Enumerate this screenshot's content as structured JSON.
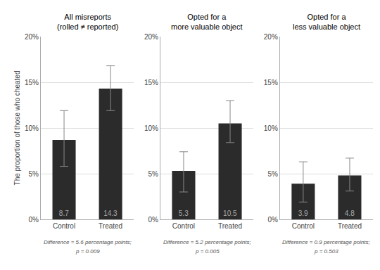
{
  "chart_data": [
    {
      "type": "bar",
      "title": "All misreports\n(rolled ≠ reported)",
      "ylabel": "The proportion of those who cheated",
      "categories": [
        "Control",
        "Treated"
      ],
      "values": [
        8.7,
        14.3
      ],
      "ci_lower": [
        5.8,
        11.9
      ],
      "ci_upper": [
        11.9,
        16.8
      ],
      "color": "#2b2b2b",
      "ylim": [
        0,
        20
      ],
      "yticks": [
        {
          "value": 0,
          "label": "0%"
        },
        {
          "value": 5,
          "label": "5%"
        },
        {
          "value": 10,
          "label": "10%"
        },
        {
          "value": 15,
          "label": "15%"
        },
        {
          "value": 20,
          "label": "20%"
        }
      ],
      "grid": true,
      "data_labels": true,
      "annotations": [
        "Difference = 5.6 percentage points;",
        "p = 0.009"
      ]
    },
    {
      "type": "bar",
      "title": "Opted for a\nmore valuable object",
      "categories": [
        "Control",
        "Treated"
      ],
      "values": [
        5.3,
        10.5
      ],
      "ci_lower": [
        3.0,
        8.4
      ],
      "ci_upper": [
        7.4,
        13.0
      ],
      "color": "#2b2b2b",
      "ylim": [
        0,
        20
      ],
      "yticks": [
        {
          "value": 0,
          "label": "0%"
        },
        {
          "value": 5,
          "label": "5%"
        },
        {
          "value": 10,
          "label": "10%"
        },
        {
          "value": 15,
          "label": "15%"
        },
        {
          "value": 20,
          "label": "20%"
        }
      ],
      "grid": true,
      "data_labels": true,
      "annotations": [
        "Difference = 5.2 percentage points;",
        "p = 0.005"
      ]
    },
    {
      "type": "bar",
      "title": "Opted for a\nless valuable object",
      "categories": [
        "Control",
        "Treated"
      ],
      "values": [
        3.9,
        4.8
      ],
      "ci_lower": [
        1.9,
        3.1
      ],
      "ci_upper": [
        6.3,
        6.7
      ],
      "color": "#2b2b2b",
      "ylim": [
        0,
        20
      ],
      "yticks": [
        {
          "value": 0,
          "label": "0%"
        },
        {
          "value": 5,
          "label": "5%"
        },
        {
          "value": 10,
          "label": "10%"
        },
        {
          "value": 15,
          "label": "15%"
        },
        {
          "value": 20,
          "label": "20%"
        }
      ],
      "grid": true,
      "data_labels": true,
      "annotations": [
        "Difference = 0.9 percentage points;",
        "p = 0.503"
      ]
    }
  ]
}
